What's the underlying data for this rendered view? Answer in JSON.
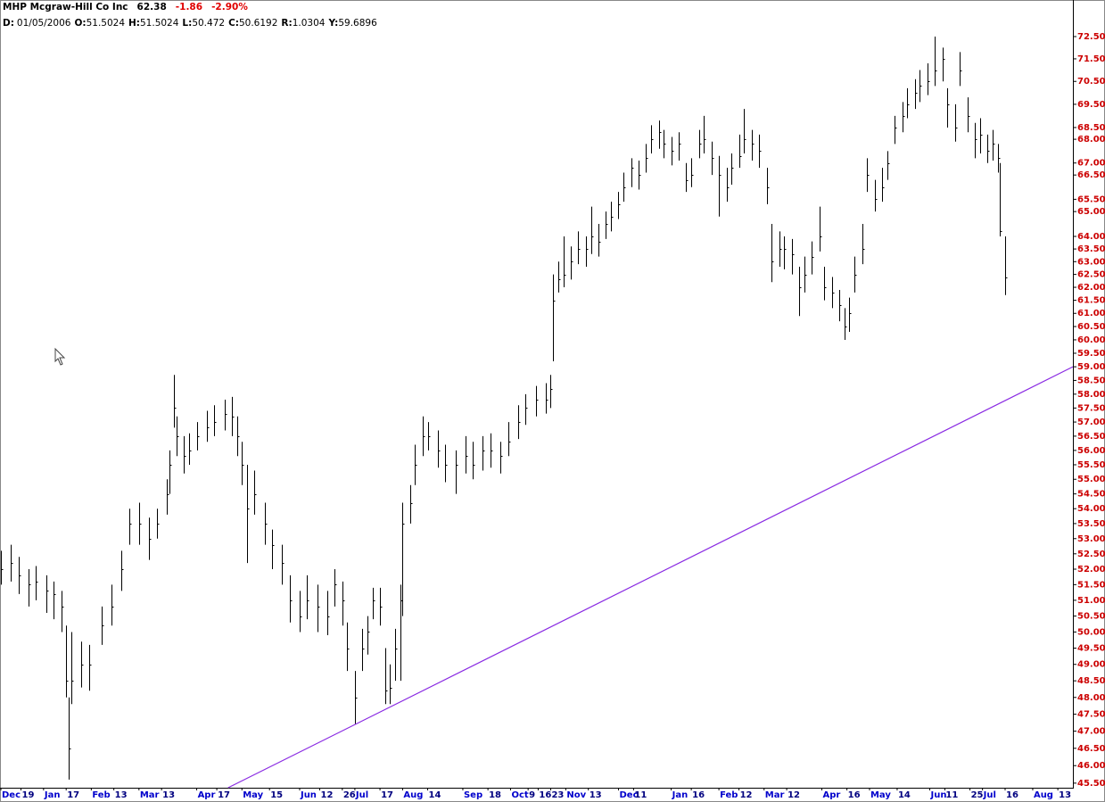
{
  "chart_data": {
    "type": "hlc",
    "title": "MHP Mcgraw-Hill Co Inc",
    "last": "62.38",
    "change": "-1.86",
    "change_percent": "-2.90%",
    "readout": [
      {
        "key": "D:",
        "value": "01/05/2006"
      },
      {
        "key": "O:",
        "value": "51.5024"
      },
      {
        "key": "H:",
        "value": "51.5024"
      },
      {
        "key": "L:",
        "value": "50.472"
      },
      {
        "key": "C:",
        "value": "50.6192"
      },
      {
        "key": "R:",
        "value": "1.0304"
      },
      {
        "key": "Y:",
        "value": "59.6896"
      }
    ],
    "bar_color": "#000000",
    "log_y": true,
    "xlim": [
      0,
      427
    ],
    "ylim": [
      45.37,
      74.05
    ],
    "xticks": [
      {
        "value": 0,
        "label": "Dec"
      },
      {
        "value": 8,
        "label": "19"
      },
      {
        "value": 17,
        "label": "Jan"
      },
      {
        "value": 26,
        "label": "17"
      },
      {
        "value": 36,
        "label": "Feb"
      },
      {
        "value": 45,
        "label": "13"
      },
      {
        "value": 55,
        "label": "Mar"
      },
      {
        "value": 64,
        "label": "13"
      },
      {
        "value": 78,
        "label": "Apr"
      },
      {
        "value": 86,
        "label": "17"
      },
      {
        "value": 96,
        "label": "May"
      },
      {
        "value": 107,
        "label": "15"
      },
      {
        "value": 119,
        "label": "Jun"
      },
      {
        "value": 127,
        "label": "12"
      },
      {
        "value": 136,
        "label": "26"
      },
      {
        "value": 141,
        "label": "Jul"
      },
      {
        "value": 151,
        "label": "17"
      },
      {
        "value": 160,
        "label": "Aug"
      },
      {
        "value": 170,
        "label": "14"
      },
      {
        "value": 184,
        "label": "Sep"
      },
      {
        "value": 194,
        "label": "18"
      },
      {
        "value": 203,
        "label": "Oct"
      },
      {
        "value": 210,
        "label": "9"
      },
      {
        "value": 214,
        "label": "16"
      },
      {
        "value": 219,
        "label": "23"
      },
      {
        "value": 225,
        "label": "Nov"
      },
      {
        "value": 234,
        "label": "13"
      },
      {
        "value": 246,
        "label": "Dec"
      },
      {
        "value": 252,
        "label": "11"
      },
      {
        "value": 267,
        "label": "Jan"
      },
      {
        "value": 275,
        "label": "16"
      },
      {
        "value": 286,
        "label": "Feb"
      },
      {
        "value": 294,
        "label": "12"
      },
      {
        "value": 304,
        "label": "Mar"
      },
      {
        "value": 313,
        "label": "12"
      },
      {
        "value": 327,
        "label": "Apr"
      },
      {
        "value": 337,
        "label": "16"
      },
      {
        "value": 346,
        "label": "May"
      },
      {
        "value": 357,
        "label": "14"
      },
      {
        "value": 370,
        "label": "Jun"
      },
      {
        "value": 376,
        "label": "11"
      },
      {
        "value": 386,
        "label": "25"
      },
      {
        "value": 391,
        "label": "Jul"
      },
      {
        "value": 400,
        "label": "16"
      },
      {
        "value": 411,
        "label": "Aug"
      },
      {
        "value": 421,
        "label": "13"
      }
    ],
    "yticks": [
      {
        "value": 72.5,
        "label": "72.50"
      },
      {
        "value": 71.5,
        "label": "71.50"
      },
      {
        "value": 70.5,
        "label": "70.50"
      },
      {
        "value": 69.5,
        "label": "69.50"
      },
      {
        "value": 68.5,
        "label": "68.50"
      },
      {
        "value": 68,
        "label": "68.00"
      },
      {
        "value": 67,
        "label": "67.00"
      },
      {
        "value": 66.5,
        "label": "66.50"
      },
      {
        "value": 65.5,
        "label": "65.50"
      },
      {
        "value": 65,
        "label": "65.00"
      },
      {
        "value": 64,
        "label": "64.00"
      },
      {
        "value": 63.5,
        "label": "63.50"
      },
      {
        "value": 63,
        "label": "63.00"
      },
      {
        "value": 62.5,
        "label": "62.50"
      },
      {
        "value": 62,
        "label": "62.00"
      },
      {
        "value": 61.5,
        "label": "61.50"
      },
      {
        "value": 61,
        "label": "61.00"
      },
      {
        "value": 60.5,
        "label": "60.50"
      },
      {
        "value": 60,
        "label": "60.00"
      },
      {
        "value": 59.5,
        "label": "59.50"
      },
      {
        "value": 59,
        "label": "59.00"
      },
      {
        "value": 58.5,
        "label": "58.50"
      },
      {
        "value": 58,
        "label": "58.00"
      },
      {
        "value": 57.5,
        "label": "57.50"
      },
      {
        "value": 57,
        "label": "57.00"
      },
      {
        "value": 56.5,
        "label": "56.50"
      },
      {
        "value": 56,
        "label": "56.00"
      },
      {
        "value": 55.5,
        "label": "55.50"
      },
      {
        "value": 55,
        "label": "55.00"
      },
      {
        "value": 54.5,
        "label": "54.50"
      },
      {
        "value": 54,
        "label": "54.00"
      },
      {
        "value": 53.5,
        "label": "53.50"
      },
      {
        "value": 53,
        "label": "53.00"
      },
      {
        "value": 52.5,
        "label": "52.50"
      },
      {
        "value": 52,
        "label": "52.00"
      },
      {
        "value": 51.5,
        "label": "51.50"
      },
      {
        "value": 51,
        "label": "51.00"
      },
      {
        "value": 50.5,
        "label": "50.50"
      },
      {
        "value": 50,
        "label": "50.00"
      },
      {
        "value": 49.5,
        "label": "49.50"
      },
      {
        "value": 49,
        "label": "49.00"
      },
      {
        "value": 48.5,
        "label": "48.50"
      },
      {
        "value": 48,
        "label": "48.00"
      },
      {
        "value": 47.5,
        "label": "47.50"
      },
      {
        "value": 47,
        "label": "47.00"
      },
      {
        "value": 46.5,
        "label": "46.50"
      },
      {
        "value": 46,
        "label": "46.00"
      },
      {
        "value": 45.5,
        "label": "45.50"
      }
    ],
    "x": [
      0,
      4,
      7,
      11,
      14,
      18,
      21,
      24,
      26,
      27,
      28,
      32,
      35,
      40,
      44,
      48,
      51,
      55,
      59,
      62,
      66,
      67,
      69,
      70,
      73,
      75,
      78,
      82,
      85,
      89,
      92,
      94,
      96,
      98,
      101,
      105,
      108,
      112,
      115,
      119,
      122,
      126,
      130,
      133,
      136,
      138,
      141,
      144,
      146,
      148,
      151,
      153,
      155,
      157,
      159,
      160,
      163,
      165,
      168,
      170,
      174,
      177,
      181,
      185,
      188,
      192,
      195,
      199,
      202,
      206,
      209,
      213,
      217,
      219,
      220,
      222,
      224,
      227,
      230,
      233,
      235,
      238,
      241,
      243,
      246,
      248,
      251,
      254,
      257,
      259,
      262,
      264,
      267,
      270,
      273,
      275,
      278,
      280,
      283,
      286,
      289,
      291,
      294,
      296,
      299,
      302,
      305,
      307,
      310,
      312,
      315,
      318,
      320,
      323,
      326,
      328,
      331,
      334,
      336,
      338,
      340,
      343,
      345,
      348,
      351,
      353,
      356,
      359,
      361,
      364,
      366,
      369,
      372,
      375,
      377,
      380,
      382,
      385,
      388,
      390,
      393,
      395,
      397,
      398,
      400
    ],
    "high": [
      52.6,
      52.8,
      52.4,
      52.0,
      52.1,
      51.8,
      51.6,
      51.3,
      50.2,
      48.0,
      50.0,
      49.7,
      49.6,
      50.8,
      51.5,
      52.6,
      54.0,
      54.2,
      53.7,
      54.0,
      55.0,
      56.0,
      58.7,
      57.2,
      56.5,
      56.6,
      57.0,
      57.4,
      57.6,
      57.8,
      57.9,
      57.2,
      56.3,
      55.5,
      55.3,
      54.2,
      53.3,
      52.8,
      51.8,
      51.3,
      51.8,
      51.5,
      51.3,
      52.0,
      51.6,
      50.3,
      48.8,
      50.1,
      50.5,
      51.4,
      51.4,
      49.5,
      49.0,
      50.1,
      51.5,
      54.2,
      54.8,
      56.2,
      57.2,
      57.0,
      56.7,
      56.2,
      56.0,
      56.5,
      56.3,
      56.5,
      56.6,
      56.3,
      57.0,
      57.6,
      58.0,
      58.3,
      58.4,
      58.7,
      62.5,
      63.0,
      64.0,
      63.6,
      64.2,
      64.0,
      65.2,
      64.5,
      65.0,
      65.4,
      65.8,
      66.6,
      67.2,
      67.1,
      67.8,
      68.6,
      68.8,
      68.4,
      68.1,
      68.3,
      67.0,
      67.2,
      68.4,
      69.0,
      67.9,
      67.3,
      66.8,
      67.4,
      68.2,
      69.3,
      68.4,
      68.2,
      66.8,
      64.5,
      64.2,
      64.0,
      63.9,
      62.8,
      63.2,
      63.8,
      65.2,
      62.8,
      62.4,
      61.9,
      61.2,
      61.6,
      63.2,
      64.5,
      67.2,
      66.3,
      66.8,
      67.5,
      69.0,
      69.6,
      70.2,
      70.6,
      71.0,
      71.3,
      72.5,
      72.0,
      70.2,
      69.5,
      71.8,
      69.8,
      68.7,
      68.9,
      68.2,
      68.4,
      67.8,
      67.0,
      64.0
    ],
    "low": [
      51.5,
      51.6,
      51.2,
      50.8,
      51.0,
      50.6,
      50.4,
      50.0,
      48.0,
      45.6,
      47.8,
      48.3,
      48.2,
      49.6,
      50.2,
      51.3,
      52.8,
      52.8,
      52.3,
      53.0,
      53.8,
      54.5,
      56.8,
      55.8,
      55.2,
      55.5,
      56.0,
      56.3,
      56.5,
      56.7,
      56.5,
      55.8,
      54.8,
      52.2,
      53.8,
      52.8,
      52.0,
      51.5,
      50.3,
      50.0,
      50.4,
      50.0,
      49.9,
      50.8,
      50.2,
      48.8,
      47.2,
      48.8,
      49.3,
      50.4,
      50.2,
      47.8,
      47.8,
      48.5,
      48.5,
      50.5,
      53.5,
      54.8,
      55.8,
      56.0,
      55.4,
      54.9,
      54.5,
      55.2,
      55.0,
      55.3,
      55.4,
      55.2,
      55.8,
      56.4,
      56.9,
      57.2,
      57.3,
      57.5,
      59.2,
      61.8,
      62.0,
      62.3,
      62.9,
      62.8,
      63.3,
      63.2,
      63.9,
      64.2,
      64.7,
      65.4,
      66.0,
      65.9,
      66.6,
      67.4,
      67.6,
      67.2,
      66.9,
      67.1,
      65.8,
      66.0,
      67.2,
      67.4,
      66.5,
      64.8,
      65.4,
      66.1,
      66.8,
      67.4,
      67.1,
      66.8,
      65.3,
      62.2,
      62.8,
      62.7,
      62.5,
      60.9,
      61.8,
      62.5,
      63.4,
      61.5,
      61.2,
      60.7,
      60.0,
      60.3,
      61.8,
      62.9,
      65.8,
      65.0,
      65.4,
      66.3,
      67.8,
      68.3,
      68.9,
      69.3,
      69.6,
      69.9,
      70.3,
      70.5,
      68.5,
      67.9,
      70.3,
      68.3,
      67.2,
      67.4,
      67.0,
      67.1,
      66.6,
      64.0,
      61.7
    ],
    "close": [
      52.0,
      52.2,
      51.8,
      51.5,
      51.6,
      51.3,
      51.2,
      50.8,
      48.5,
      46.5,
      48.5,
      49.0,
      49.0,
      50.2,
      50.8,
      52.0,
      53.5,
      53.5,
      53.0,
      53.5,
      54.5,
      55.5,
      57.5,
      56.5,
      55.8,
      56.0,
      56.5,
      56.8,
      57.0,
      57.3,
      57.2,
      56.5,
      55.5,
      54.0,
      54.5,
      53.5,
      52.8,
      52.2,
      51.0,
      50.5,
      51.0,
      50.8,
      50.5,
      51.5,
      51.0,
      49.5,
      48.0,
      49.5,
      50.0,
      51.0,
      50.8,
      48.2,
      48.3,
      49.5,
      51.0,
      53.5,
      54.2,
      55.5,
      56.5,
      56.5,
      56.0,
      55.5,
      55.5,
      55.8,
      55.5,
      56.0,
      56.0,
      55.8,
      56.3,
      57.0,
      57.5,
      57.8,
      57.8,
      58.2,
      61.5,
      62.3,
      62.5,
      63.0,
      63.5,
      63.5,
      64.0,
      63.8,
      64.5,
      64.8,
      65.3,
      66.0,
      66.8,
      66.5,
      67.2,
      68.0,
      68.3,
      67.8,
      67.5,
      67.8,
      66.3,
      66.5,
      67.8,
      68.0,
      67.2,
      66.5,
      66.0,
      66.8,
      67.3,
      68.0,
      67.8,
      67.5,
      66.0,
      63.0,
      63.5,
      63.5,
      63.3,
      62.0,
      62.5,
      63.2,
      64.0,
      62.0,
      61.8,
      61.3,
      60.5,
      61.0,
      62.5,
      63.5,
      66.5,
      65.5,
      66.0,
      67.0,
      68.5,
      69.0,
      69.5,
      70.0,
      70.3,
      70.5,
      71.0,
      71.5,
      69.5,
      68.5,
      71.0,
      69.0,
      68.0,
      68.2,
      67.5,
      67.8,
      67.2,
      64.2,
      62.38
    ],
    "trendline": {
      "color": "#8a2be2",
      "x": [
        90.5,
        427
      ],
      "y": [
        45.37,
        59.0
      ]
    }
  }
}
